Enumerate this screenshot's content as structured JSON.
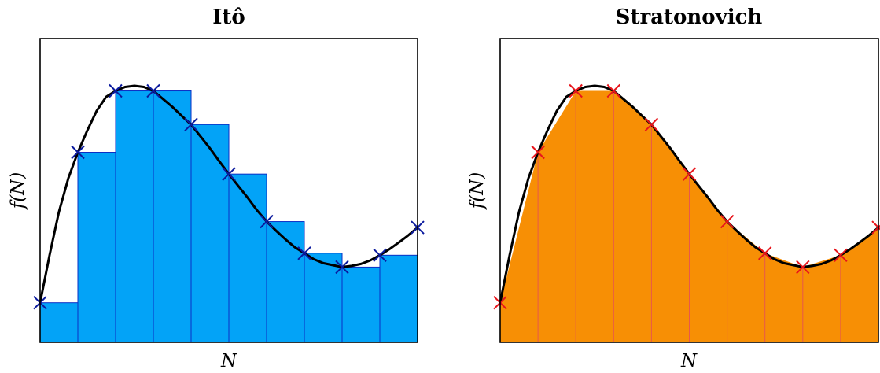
{
  "chart_data": [
    {
      "type": "bar",
      "title": "Itô",
      "xlabel": "N",
      "ylabel": "f(N)",
      "xlim": [
        0,
        10
      ],
      "ylim": [
        0,
        6.4
      ],
      "grid": false,
      "bar_color": "#03a3f7",
      "bar_edge_color": "#0b2fc4",
      "marker_color": "#0b1a9e",
      "curve_color": "#000000",
      "bars": [
        {
          "x0": 0,
          "x1": 1,
          "height": 1.0
        },
        {
          "x0": 1,
          "x1": 2,
          "height": 4.8
        },
        {
          "x0": 2,
          "x1": 3,
          "height": 6.35
        },
        {
          "x0": 3,
          "x1": 4,
          "height": 6.35
        },
        {
          "x0": 4,
          "x1": 5,
          "height": 5.5
        },
        {
          "x0": 5,
          "x1": 6,
          "height": 4.25
        },
        {
          "x0": 6,
          "x1": 7,
          "height": 3.05
        },
        {
          "x0": 7,
          "x1": 8,
          "height": 2.25
        },
        {
          "x0": 8,
          "x1": 9,
          "height": 1.9
        },
        {
          "x0": 9,
          "x1": 10,
          "height": 2.2
        }
      ],
      "markers": [
        {
          "x": 0,
          "y": 1.0
        },
        {
          "x": 1,
          "y": 4.8
        },
        {
          "x": 2,
          "y": 6.35
        },
        {
          "x": 3,
          "y": 6.35
        },
        {
          "x": 4,
          "y": 5.5
        },
        {
          "x": 5,
          "y": 4.25
        },
        {
          "x": 6,
          "y": 3.05
        },
        {
          "x": 7,
          "y": 2.25
        },
        {
          "x": 8,
          "y": 1.9
        },
        {
          "x": 9,
          "y": 2.2
        },
        {
          "x": 10,
          "y": 2.9
        }
      ],
      "curve": {
        "x": [
          0,
          0.25,
          0.5,
          0.75,
          1,
          1.25,
          1.5,
          1.75,
          2,
          2.25,
          2.5,
          2.75,
          3,
          3.25,
          3.5,
          3.75,
          4,
          4.25,
          4.5,
          4.75,
          5,
          5.25,
          5.5,
          5.75,
          6,
          6.25,
          6.5,
          6.75,
          7,
          7.25,
          7.5,
          7.75,
          8,
          8.25,
          8.5,
          8.75,
          9,
          9.25,
          9.5,
          9.75,
          10
        ],
        "y": [
          1.0,
          2.2,
          3.3,
          4.15,
          4.8,
          5.35,
          5.85,
          6.2,
          6.35,
          6.45,
          6.48,
          6.45,
          6.35,
          6.15,
          5.95,
          5.72,
          5.5,
          5.2,
          4.9,
          4.57,
          4.25,
          3.95,
          3.65,
          3.33,
          3.05,
          2.82,
          2.6,
          2.4,
          2.25,
          2.1,
          2.0,
          1.95,
          1.9,
          1.93,
          1.98,
          2.07,
          2.2,
          2.35,
          2.52,
          2.7,
          2.9
        ]
      }
    },
    {
      "type": "area",
      "title": "Stratonovich",
      "xlabel": "N",
      "ylabel": "f(N)",
      "xlim": [
        0,
        10
      ],
      "ylim": [
        0,
        6.4
      ],
      "grid": false,
      "fill_color": "#f78f05",
      "divider_color": "#e8584a",
      "marker_color": "#e8151b",
      "curve_color": "#000000",
      "trapezoid_nodes": {
        "x": [
          0,
          1,
          2,
          3,
          4,
          5,
          6,
          7,
          8,
          9,
          10
        ],
        "y": [
          1.0,
          4.8,
          6.35,
          6.35,
          5.5,
          4.25,
          3.05,
          2.25,
          1.9,
          2.2,
          2.9
        ]
      },
      "markers": [
        {
          "x": 0,
          "y": 1.0
        },
        {
          "x": 1,
          "y": 4.8
        },
        {
          "x": 2,
          "y": 6.35
        },
        {
          "x": 3,
          "y": 6.35
        },
        {
          "x": 4,
          "y": 5.5
        },
        {
          "x": 5,
          "y": 4.25
        },
        {
          "x": 6,
          "y": 3.05
        },
        {
          "x": 7,
          "y": 2.25
        },
        {
          "x": 8,
          "y": 1.9
        },
        {
          "x": 9,
          "y": 2.2
        },
        {
          "x": 10,
          "y": 2.9
        }
      ],
      "curve": {
        "x": [
          0,
          0.25,
          0.5,
          0.75,
          1,
          1.25,
          1.5,
          1.75,
          2,
          2.25,
          2.5,
          2.75,
          3,
          3.25,
          3.5,
          3.75,
          4,
          4.25,
          4.5,
          4.75,
          5,
          5.25,
          5.5,
          5.75,
          6,
          6.25,
          6.5,
          6.75,
          7,
          7.25,
          7.5,
          7.75,
          8,
          8.25,
          8.5,
          8.75,
          9,
          9.25,
          9.5,
          9.75,
          10
        ],
        "y": [
          1.0,
          2.2,
          3.3,
          4.15,
          4.8,
          5.35,
          5.85,
          6.2,
          6.35,
          6.45,
          6.48,
          6.45,
          6.35,
          6.15,
          5.95,
          5.72,
          5.5,
          5.2,
          4.9,
          4.57,
          4.25,
          3.95,
          3.65,
          3.33,
          3.05,
          2.82,
          2.6,
          2.4,
          2.25,
          2.1,
          2.0,
          1.95,
          1.9,
          1.93,
          1.98,
          2.07,
          2.2,
          2.35,
          2.52,
          2.7,
          2.9
        ]
      }
    }
  ]
}
